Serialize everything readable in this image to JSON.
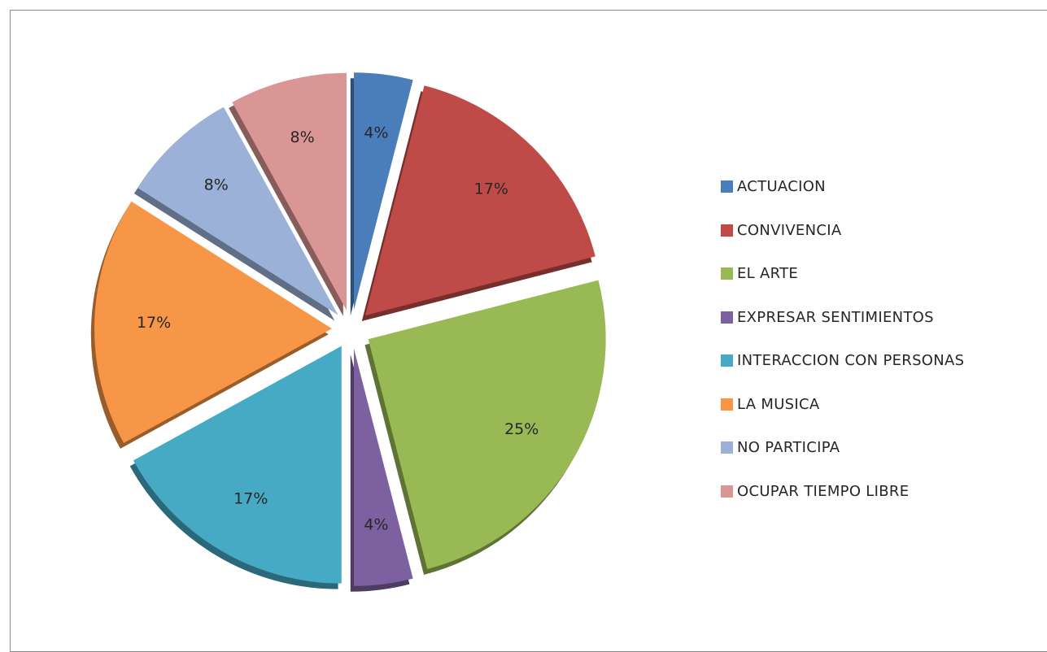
{
  "chart_data": {
    "type": "pie",
    "exploded": true,
    "three_d": true,
    "title": "",
    "start_angle_deg": 0,
    "direction": "clockwise",
    "legend_position": "right",
    "slices": [
      {
        "label": "ACTUACION",
        "value": 4,
        "display": "4%",
        "color": "#4a7ebb"
      },
      {
        "label": "CONVIVENCIA",
        "value": 17,
        "display": "17%",
        "color": "#be4b48"
      },
      {
        "label": "EL ARTE",
        "value": 25,
        "display": "25%",
        "color": "#98b954"
      },
      {
        "label": "EXPRESAR  SENTIMIENTOS",
        "value": 4,
        "display": "4%",
        "color": "#7d60a0"
      },
      {
        "label": "INTERACCION CON PERSONAS",
        "value": 17,
        "display": "17%",
        "color": "#46aac5"
      },
      {
        "label": "LA MUSICA",
        "value": 17,
        "display": "17%",
        "color": "#f79646"
      },
      {
        "label": "NO PARTICIPA",
        "value": 8,
        "display": "8%",
        "color": "#9bb1d8"
      },
      {
        "label": "OCUPAR TIEMPO LIBRE",
        "value": 8,
        "display": "8%",
        "color": "#d99694"
      }
    ]
  }
}
